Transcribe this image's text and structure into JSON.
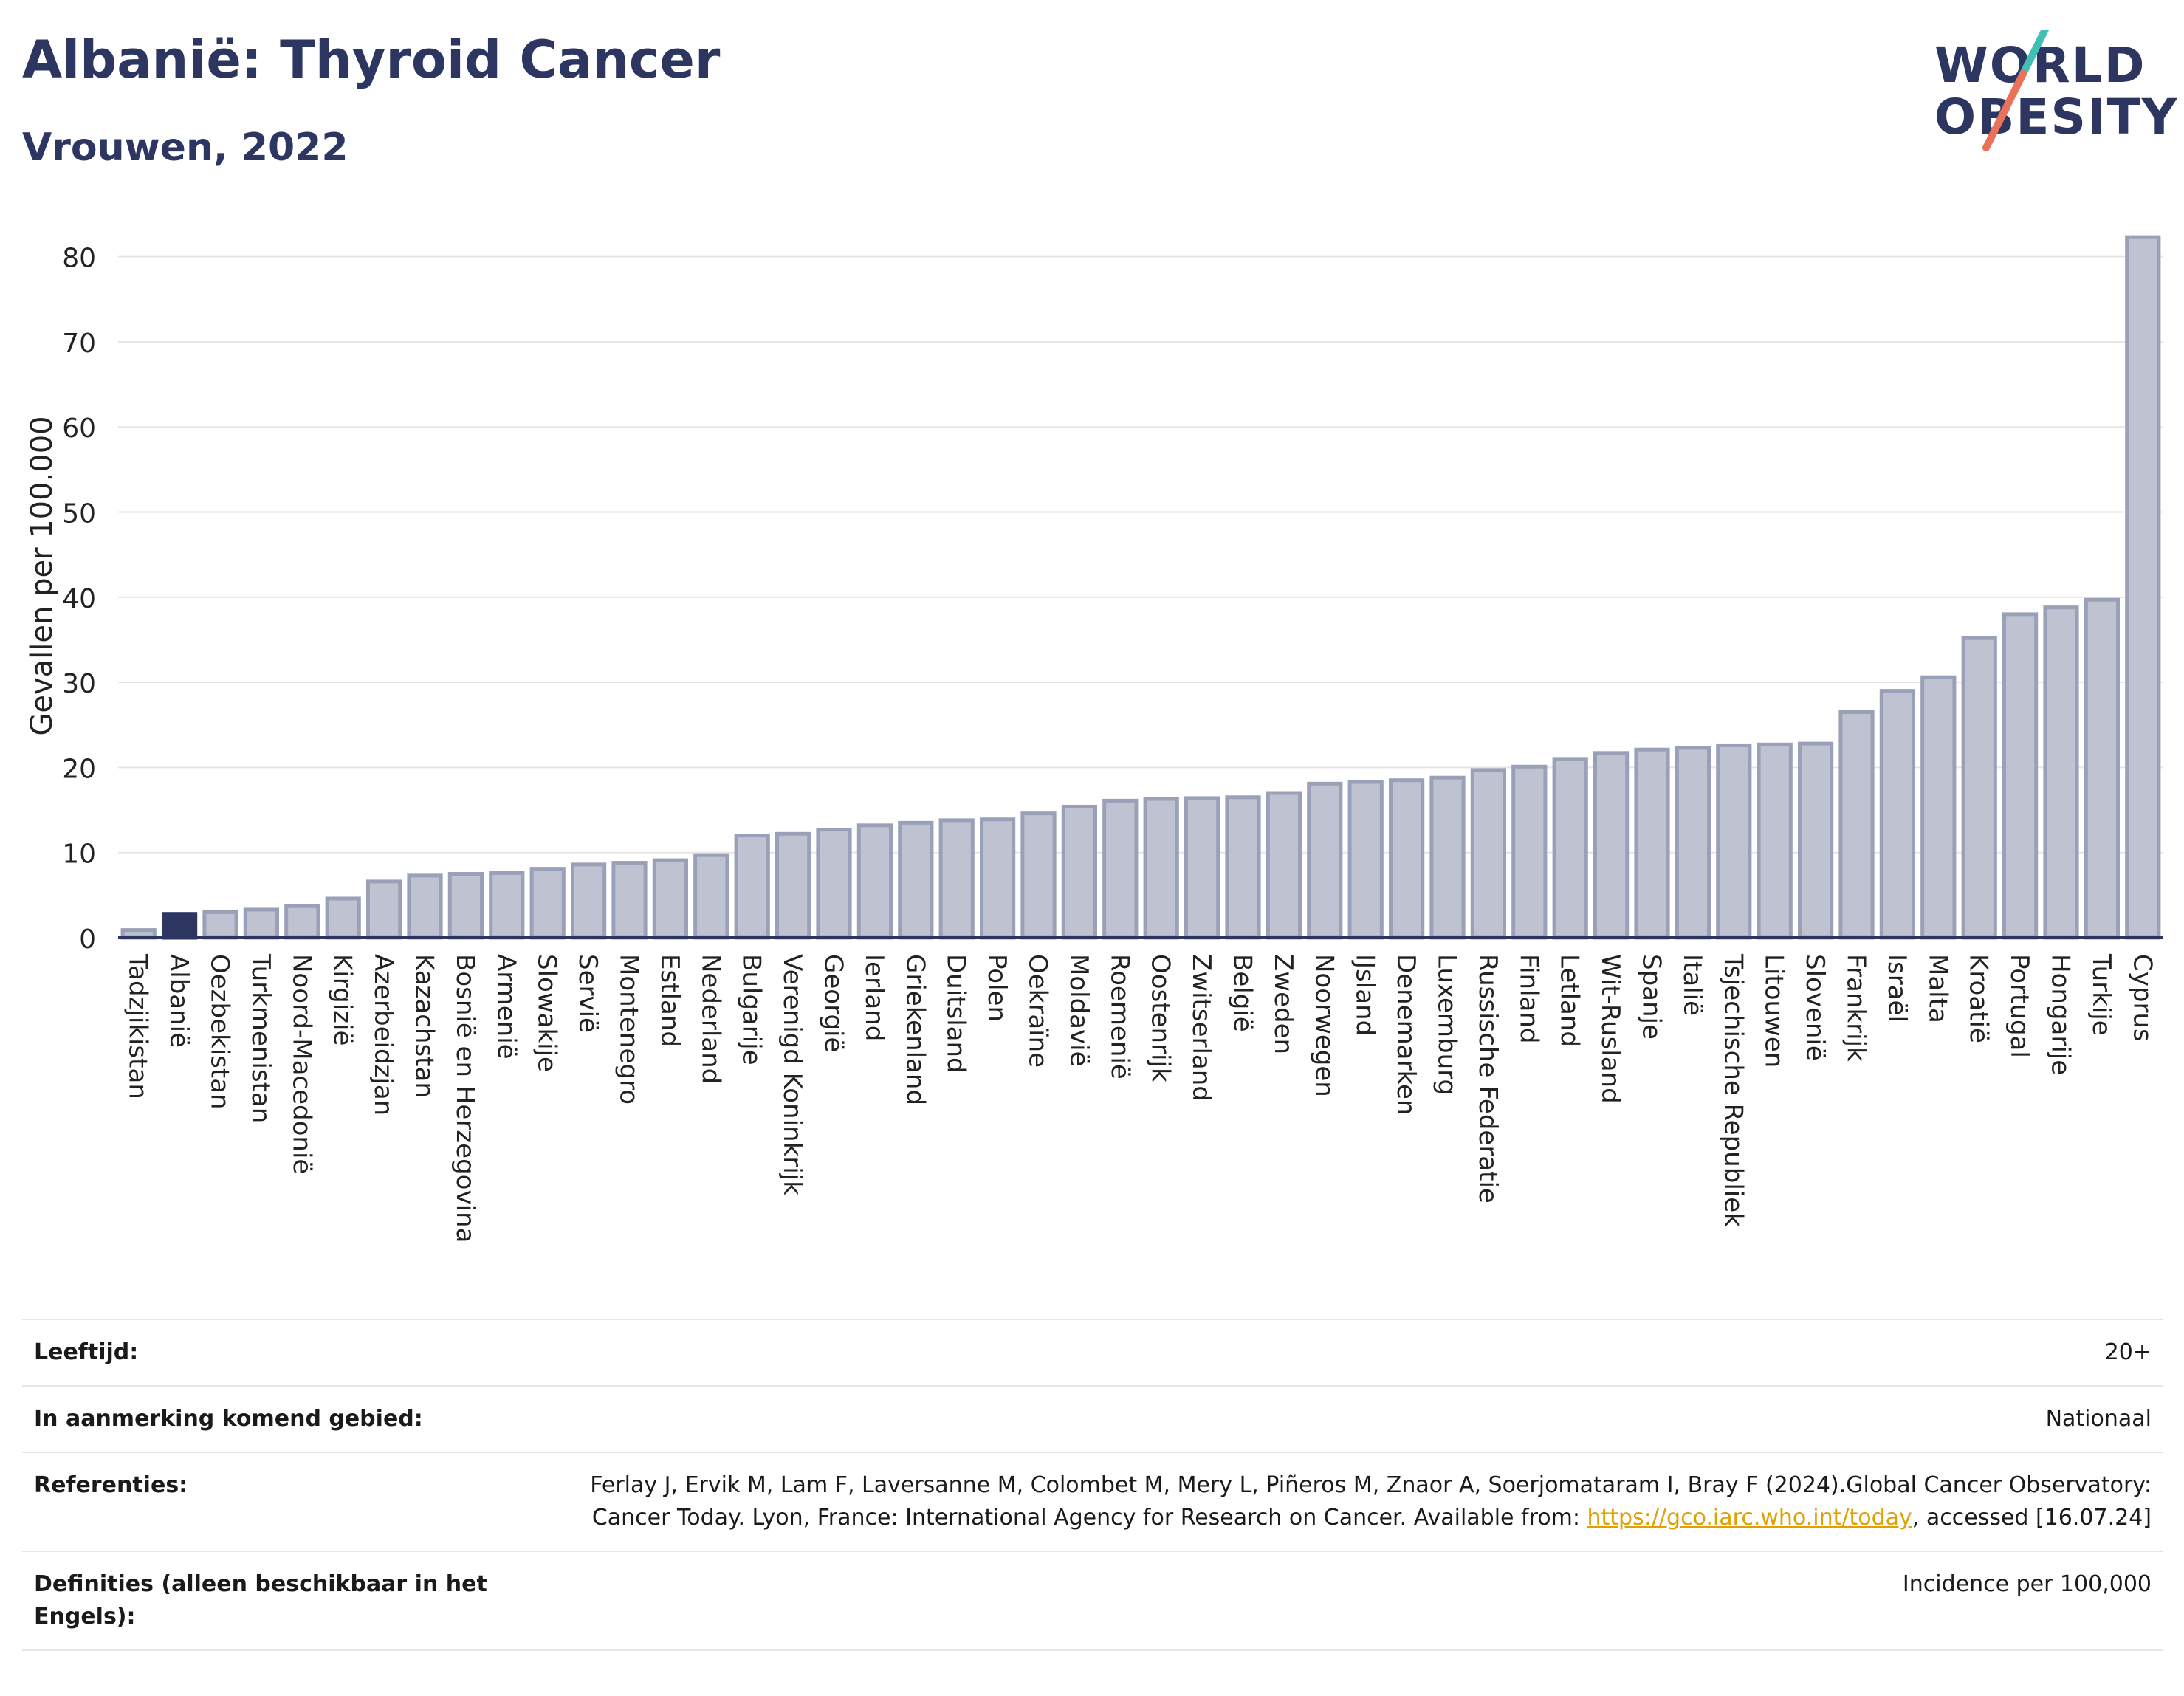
{
  "header": {
    "title": "Albanië: Thyroid Cancer",
    "subtitle": "Vrouwen, 2022"
  },
  "logo": {
    "line1": "WORLD",
    "line2": "OBESITY"
  },
  "colors": {
    "bar": "#bfc3d1",
    "bar_border": "#9aa0b8",
    "highlight": "#2d3561",
    "grid": "#e6e6e6",
    "axis": "#2d3561"
  },
  "chart_data": {
    "type": "bar",
    "ylabel": "Gevallen per 100.000",
    "xlabel": "",
    "ylim": [
      0,
      85
    ],
    "yticks": [
      0,
      10,
      20,
      30,
      40,
      50,
      60,
      70,
      80
    ],
    "grid": true,
    "highlight": "Albanië",
    "categories": [
      "Tadzjikistan",
      "Albanië",
      "Oezbekistan",
      "Turkmenistan",
      "Noord-Macedonië",
      "Kirgizië",
      "Azerbeidzjan",
      "Kazachstan",
      "Bosnië en Herzegovina",
      "Armenië",
      "Slowakije",
      "Servië",
      "Montenegro",
      "Estland",
      "Nederland",
      "Bulgarije",
      "Verenigd Koninkrijk",
      "Georgië",
      "Ierland",
      "Griekenland",
      "Duitsland",
      "Polen",
      "Oekraïne",
      "Moldavië",
      "Roemenië",
      "Oostenrijk",
      "Zwitserland",
      "België",
      "Zweden",
      "Noorwegen",
      "IJsland",
      "Denemarken",
      "Luxemburg",
      "Russische Federatie",
      "Finland",
      "Letland",
      "Wit-Rusland",
      "Spanje",
      "Italië",
      "Tsjechische Republiek",
      "Litouwen",
      "Slovenië",
      "Frankrijk",
      "Israël",
      "Malta",
      "Kroatië",
      "Portugal",
      "Hongarije",
      "Turkije",
      "Cyprus"
    ],
    "values": [
      0.9,
      2.8,
      3.0,
      3.3,
      3.7,
      4.6,
      6.6,
      7.3,
      7.5,
      7.6,
      8.1,
      8.6,
      8.8,
      9.1,
      9.7,
      12.0,
      12.2,
      12.7,
      13.2,
      13.5,
      13.8,
      13.9,
      14.6,
      15.4,
      16.1,
      16.3,
      16.4,
      16.5,
      17.0,
      18.1,
      18.3,
      18.5,
      18.8,
      19.7,
      20.1,
      21.0,
      21.7,
      22.1,
      22.3,
      22.6,
      22.7,
      22.8,
      26.5,
      29.0,
      30.6,
      35.2,
      38.0,
      38.8,
      39.7,
      82.3
    ]
  },
  "footer": {
    "rows": [
      {
        "label": "Leeftijd:",
        "value": "20+"
      },
      {
        "label": "In aanmerking komend gebied:",
        "value": "Nationaal"
      },
      {
        "label": "Referenties:",
        "value_pre": "Ferlay J, Ervik M, Lam F, Laversanne M, Colombet M, Mery L, Piñeros M, Znaor A, Soerjomataram I, Bray F (2024).Global Cancer Observatory: Cancer Today. Lyon, France: International Agency for Research on Cancer. Available from: ",
        "link": "https://gco.iarc.who.int/today",
        "value_post": ", accessed [16.07.24]"
      },
      {
        "label": "Definities (alleen beschikbaar in het Engels):",
        "value": "Incidence per 100,000"
      }
    ]
  }
}
